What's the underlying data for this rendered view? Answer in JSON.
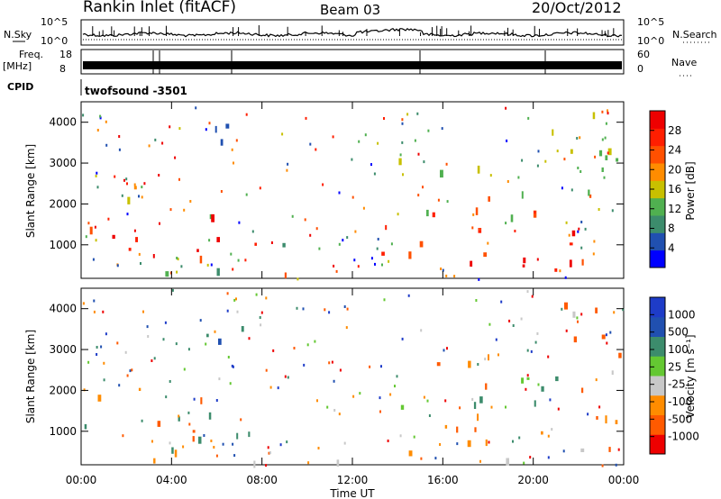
{
  "header": {
    "station": "Rankin Inlet (fitACF)",
    "beam": "Beam 03",
    "date": "20/Oct/2012"
  },
  "top_panels": {
    "nsky_label": "N.Sky",
    "nsearch_label": "N.Search",
    "freq_label": "Freq.",
    "freq_unit": "[MHz]",
    "nave_label": "Nave",
    "cpid_label": "CPID",
    "cpid_value": "twofsound  -3501",
    "noise_ticks": [
      "10^5",
      "10^0"
    ],
    "freq_ticks": [
      "18",
      "8"
    ],
    "nave_ticks": [
      "60",
      "0"
    ]
  },
  "colors": {
    "power_scale": [
      "#0000ff",
      "#2050b0",
      "#3c8c6c",
      "#50b050",
      "#c8c000",
      "#ff8c00",
      "#ff5000",
      "#ff1e00",
      "#ee0000"
    ],
    "velocity_scale": [
      "#ee0000",
      "#ff5a00",
      "#ff8c00",
      "#c8c8c8",
      "#64c832",
      "#3c8c6c",
      "#2050b0",
      "#1e3cc8"
    ]
  },
  "chart_data": [
    {
      "type": "heatmap",
      "name": "power",
      "title": "",
      "xlabel": "Time UT",
      "ylabel": "Slant Range [km]",
      "x_ticks": [
        "00:00",
        "04:00",
        "08:00",
        "12:00",
        "16:00",
        "20:00",
        "00:00"
      ],
      "y_ticks": [
        "1000",
        "2000",
        "3000",
        "4000"
      ],
      "ylim": [
        180,
        4500
      ],
      "colorbar_label": "Power [dB]",
      "colorbar_ticks": [
        "28",
        "24",
        "20",
        "16",
        "12",
        "8",
        "4"
      ],
      "colorbar_range": [
        0,
        32
      ]
    },
    {
      "type": "heatmap",
      "name": "velocity",
      "title": "",
      "xlabel": "Time UT",
      "ylabel": "Slant Range [km]",
      "x_ticks": [
        "00:00",
        "04:00",
        "08:00",
        "12:00",
        "16:00",
        "20:00",
        "00:00"
      ],
      "y_ticks": [
        "1000",
        "2000",
        "3000",
        "4000"
      ],
      "ylim": [
        180,
        4500
      ],
      "colorbar_label": "Velocity [m s⁻¹]",
      "colorbar_ticks": [
        "1000",
        "500",
        "100",
        "25",
        "-25",
        "-100",
        "-500",
        "-1000"
      ]
    }
  ]
}
